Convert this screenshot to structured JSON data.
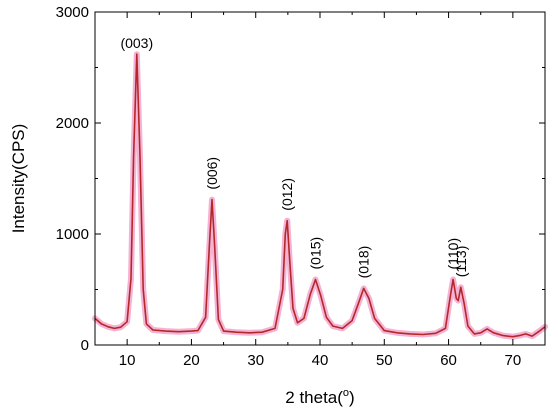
{
  "chart_data": {
    "type": "line",
    "xlabel": "2 theta(",
    "xlabel_unit": "o",
    "xlabel_close": ")",
    "ylabel": "Intensity(CPS)",
    "xlim": [
      5,
      75
    ],
    "ylim": [
      0,
      3000
    ],
    "x_ticks": [
      10,
      20,
      30,
      40,
      50,
      60,
      70
    ],
    "y_ticks": [
      0,
      1000,
      2000,
      3000
    ],
    "grid": false,
    "colors": {
      "line": "#b5282a",
      "halo": "#f2a6cc",
      "axis": "#000000"
    },
    "series": [
      {
        "points": [
          [
            5,
            240
          ],
          [
            6,
            190
          ],
          [
            7,
            165
          ],
          [
            8,
            150
          ],
          [
            9,
            160
          ],
          [
            10,
            210
          ],
          [
            10.6,
            600
          ],
          [
            11.0,
            1700
          ],
          [
            11.5,
            2620
          ],
          [
            12.0,
            1700
          ],
          [
            12.5,
            500
          ],
          [
            13,
            190
          ],
          [
            14,
            135
          ],
          [
            16,
            125
          ],
          [
            18,
            120
          ],
          [
            20,
            125
          ],
          [
            21,
            130
          ],
          [
            22.2,
            250
          ],
          [
            22.8,
            900
          ],
          [
            23.2,
            1310
          ],
          [
            23.6,
            900
          ],
          [
            24.2,
            230
          ],
          [
            25,
            125
          ],
          [
            27,
            115
          ],
          [
            29,
            110
          ],
          [
            31,
            115
          ],
          [
            33,
            150
          ],
          [
            34.2,
            500
          ],
          [
            34.6,
            1000
          ],
          [
            34.9,
            1120
          ],
          [
            35.3,
            750
          ],
          [
            35.8,
            330
          ],
          [
            36.5,
            200
          ],
          [
            37.5,
            240
          ],
          [
            38.5,
            460
          ],
          [
            39.3,
            590
          ],
          [
            40.1,
            450
          ],
          [
            41,
            250
          ],
          [
            42,
            170
          ],
          [
            43.5,
            150
          ],
          [
            45,
            220
          ],
          [
            46,
            380
          ],
          [
            46.8,
            510
          ],
          [
            47.6,
            420
          ],
          [
            48.5,
            240
          ],
          [
            50,
            130
          ],
          [
            52,
            110
          ],
          [
            54,
            100
          ],
          [
            56,
            95
          ],
          [
            58,
            105
          ],
          [
            59.5,
            150
          ],
          [
            60.3,
            450
          ],
          [
            60.7,
            590
          ],
          [
            61.2,
            420
          ],
          [
            61.5,
            400
          ],
          [
            61.9,
            520
          ],
          [
            62.4,
            380
          ],
          [
            63,
            170
          ],
          [
            64,
            100
          ],
          [
            65,
            110
          ],
          [
            66,
            145
          ],
          [
            67,
            110
          ],
          [
            68.5,
            85
          ],
          [
            70,
            75
          ],
          [
            71,
            85
          ],
          [
            72,
            100
          ],
          [
            73,
            80
          ],
          [
            74,
            120
          ],
          [
            75,
            165
          ]
        ]
      }
    ],
    "annotations": [
      {
        "text": "(003)",
        "x": 11.5,
        "y": 2620
      },
      {
        "text": "(006)",
        "x": 23.2,
        "y": 1310
      },
      {
        "text": "(012)",
        "x": 34.9,
        "y": 1120
      },
      {
        "text": "(015)",
        "x": 39.3,
        "y": 590
      },
      {
        "text": "(018)",
        "x": 46.8,
        "y": 510
      },
      {
        "text": "(110)",
        "x": 60.7,
        "y": 590
      },
      {
        "text": "(113)",
        "x": 61.9,
        "y": 520
      }
    ]
  }
}
